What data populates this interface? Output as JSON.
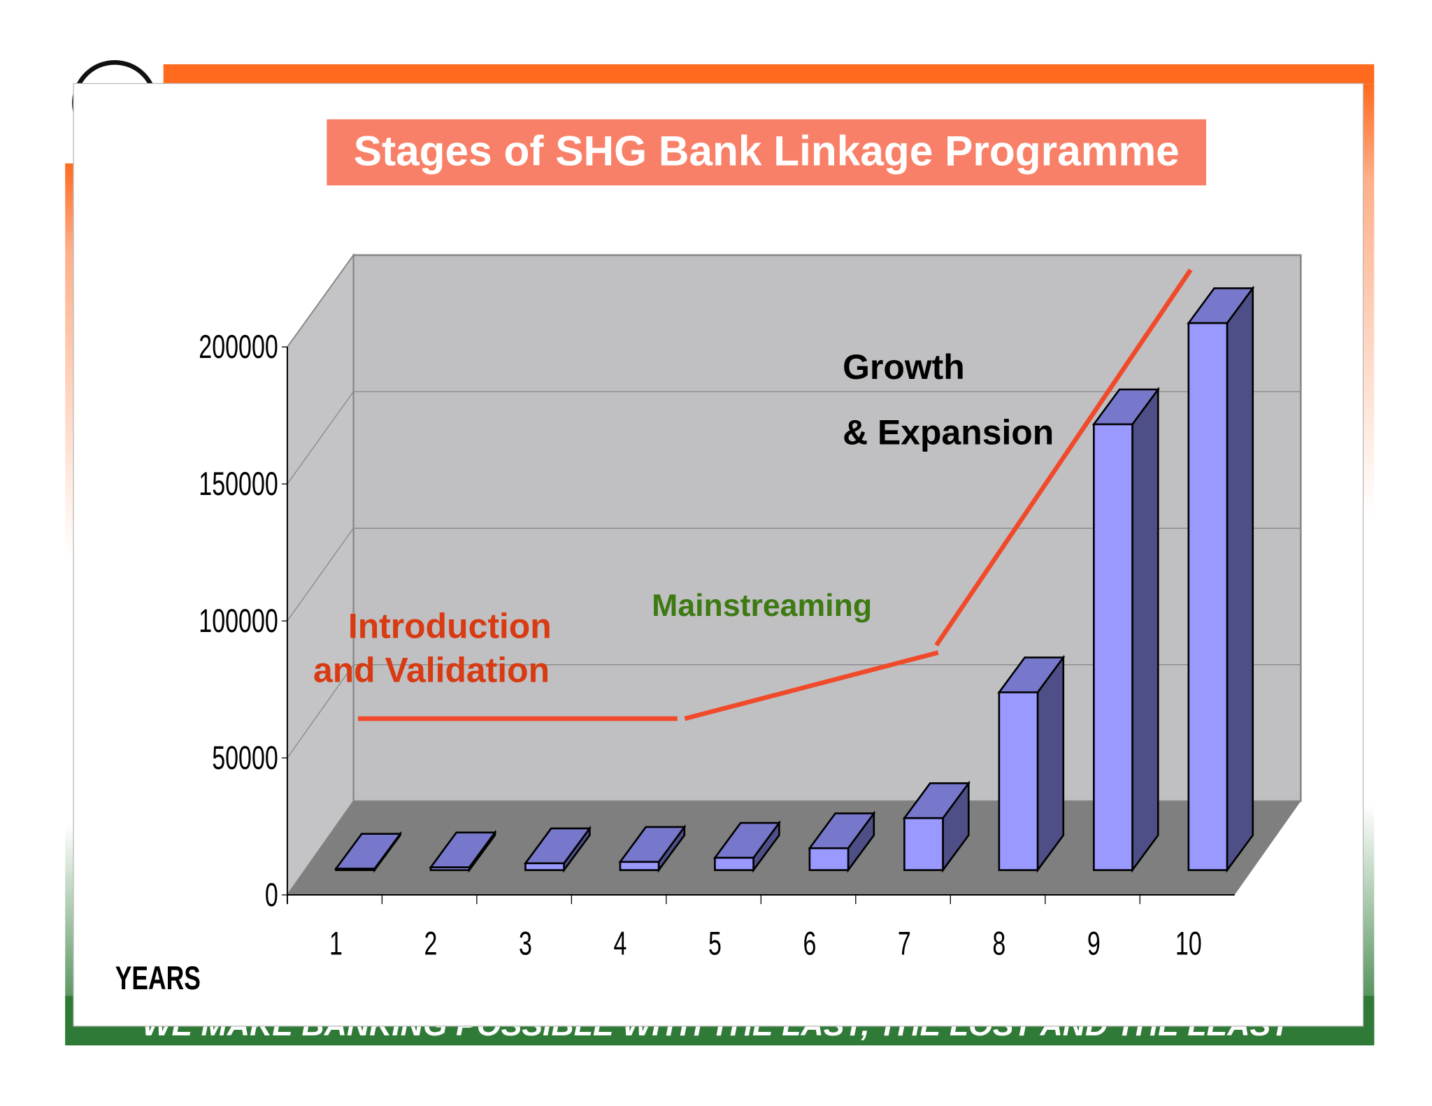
{
  "chart_data": {
    "type": "bar3d",
    "title": "Stages of SHG Bank Linkage Programme",
    "x_label": "YEARS",
    "categories": [
      "1",
      "2",
      "3",
      "4",
      "5",
      "6",
      "7",
      "8",
      "9",
      "10"
    ],
    "values": [
      500,
      1000,
      2500,
      3000,
      4500,
      8000,
      19000,
      65000,
      163000,
      200000
    ],
    "color": "#9999ff",
    "ylim": [
      0,
      200000
    ],
    "yticks": [
      0,
      50000,
      100000,
      150000,
      200000
    ],
    "grid": true,
    "annotations": [
      "Introduction",
      "and Validation",
      "Mainstreaming",
      "Growth",
      "& Expansion"
    ],
    "footer": "WE MAKE BANKING POSSIBLE WITH THE LAST, THE LOST AND THE LEAST"
  }
}
